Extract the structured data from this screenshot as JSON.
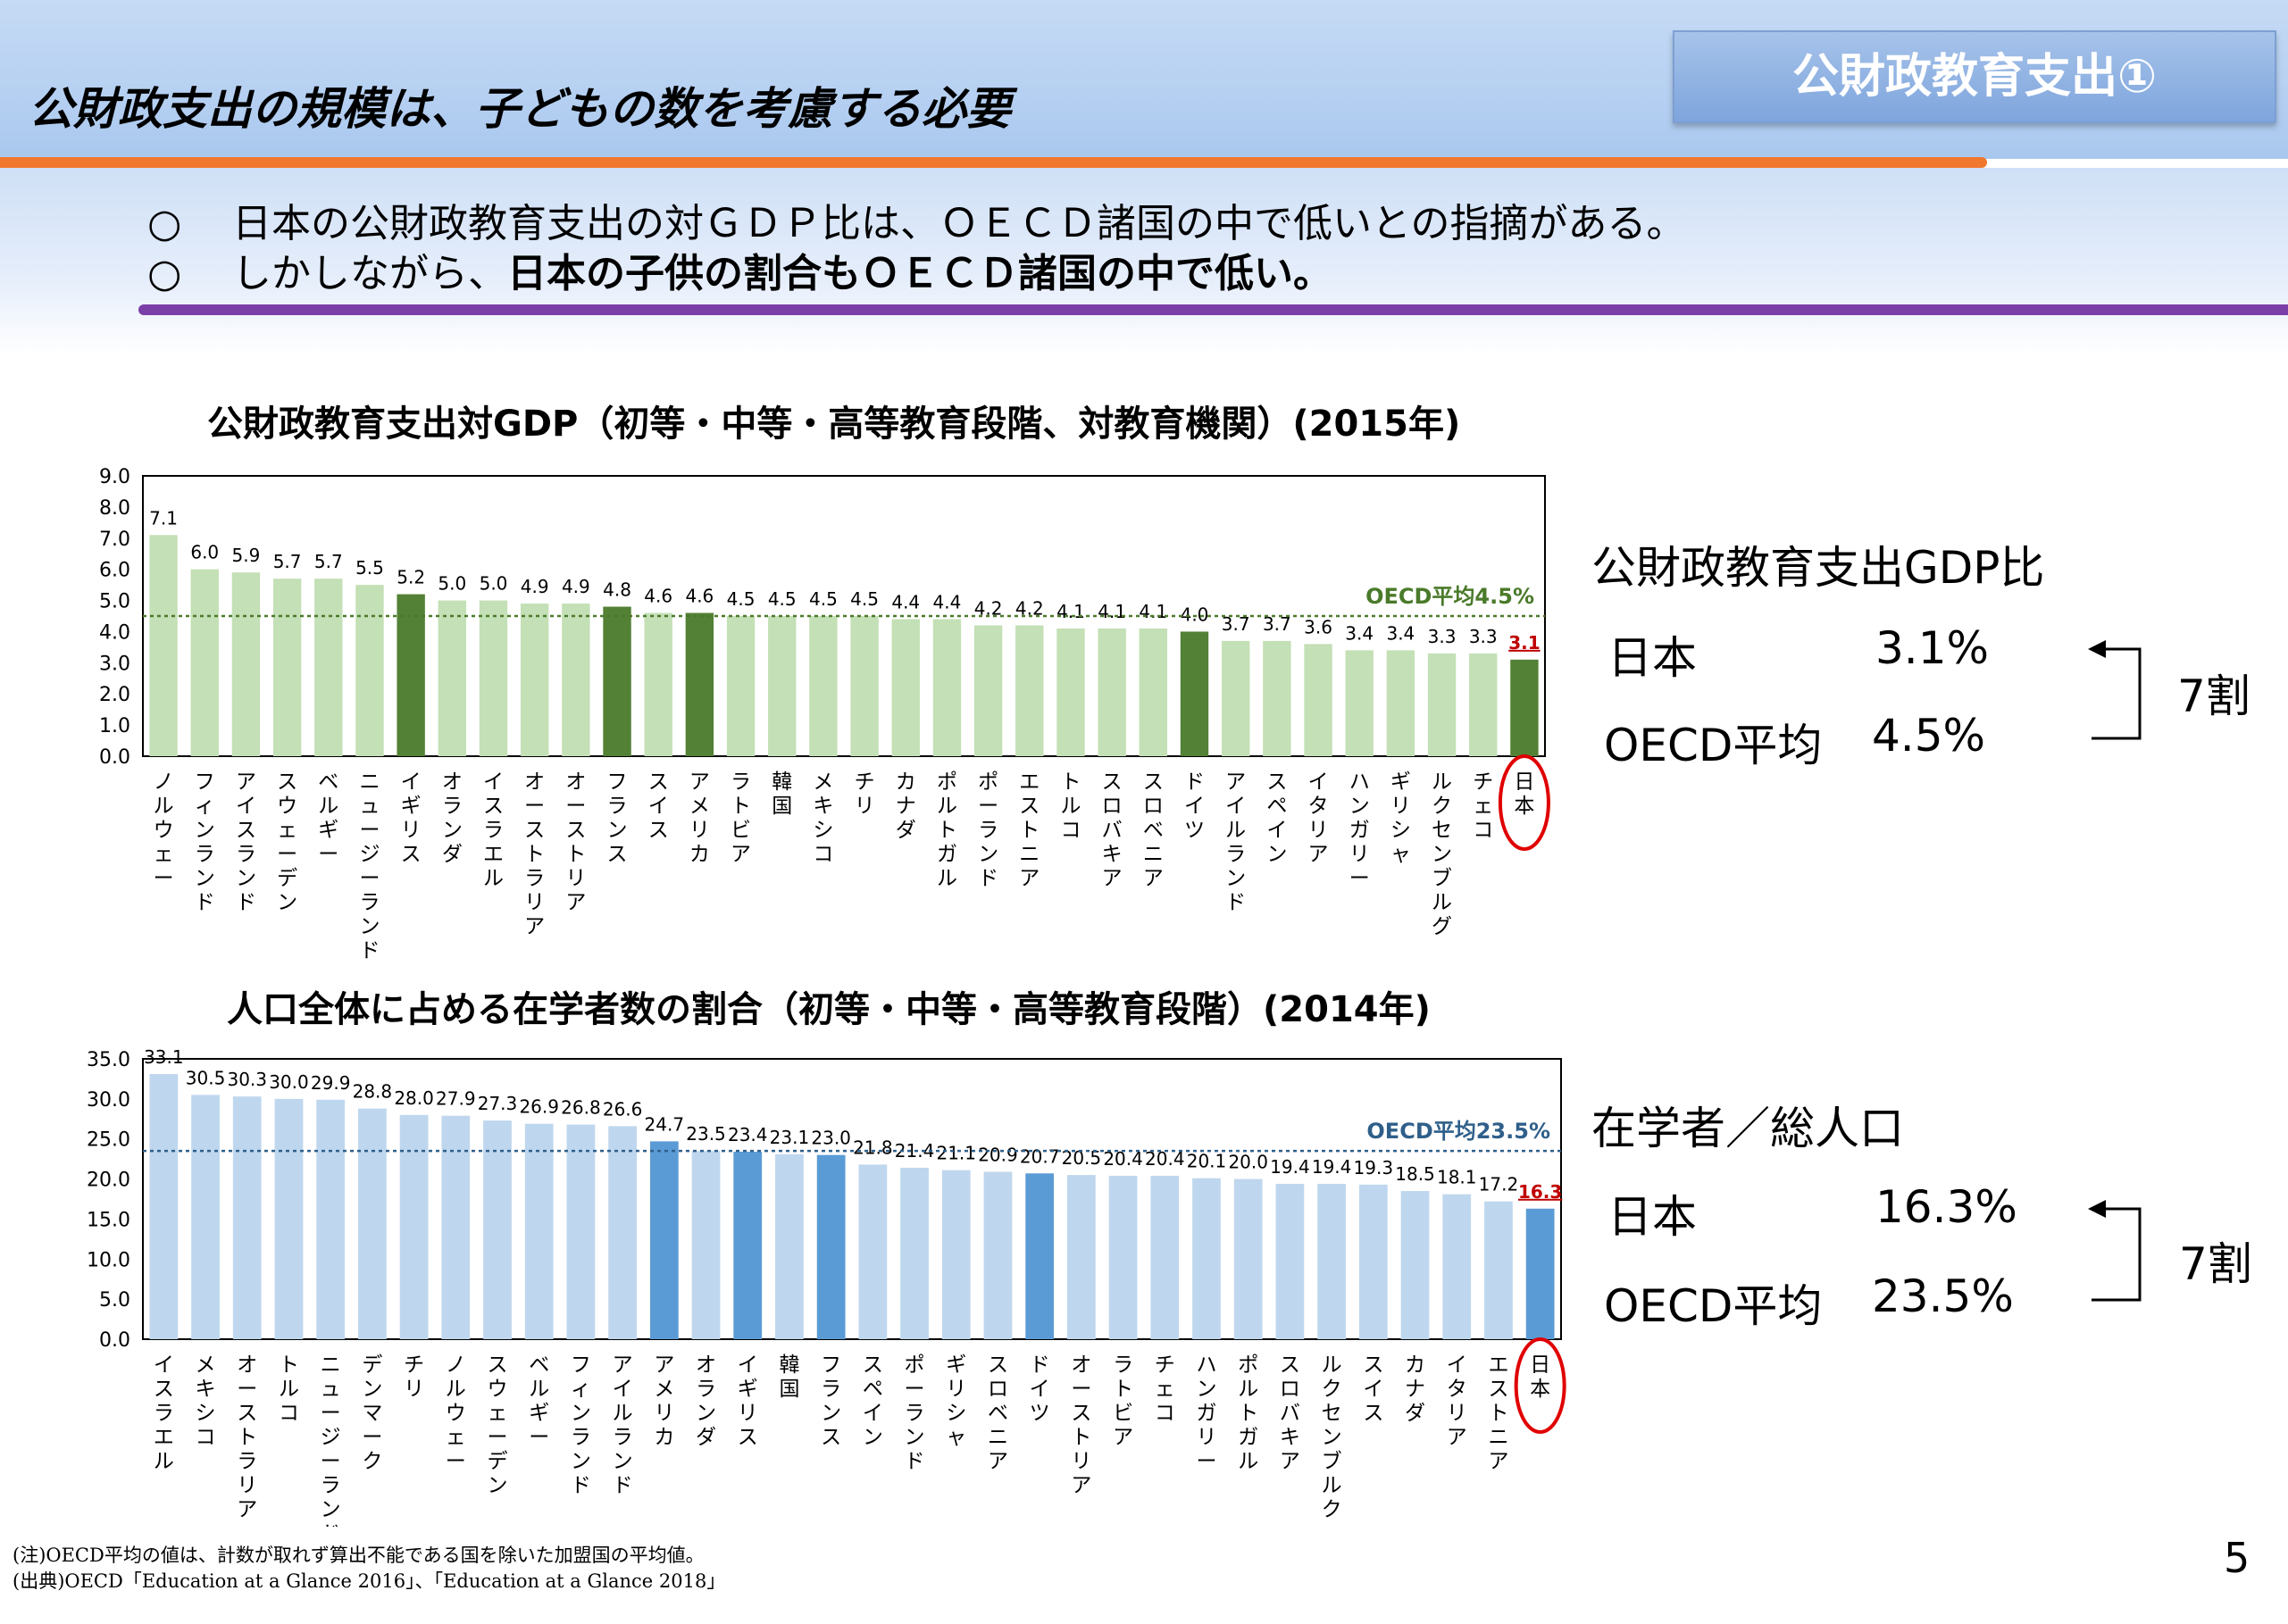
{
  "header": {
    "title": "公財政支出の規模は、子どもの数を考慮する必要",
    "badge": "公財政教育支出①"
  },
  "bullets": [
    {
      "mark": "○",
      "text": "日本の公財政教育支出の対ＧＤＰ比は、ＯＥＣＤ諸国の中で低いとの指摘がある。",
      "bold": ""
    },
    {
      "mark": "○",
      "text": "しかしながら、",
      "bold": "日本の子供の割合もＯＥＣＤ諸国の中で低い。"
    }
  ],
  "colors": {
    "light_bar": "#c4e0b6",
    "highlight_bar": "#538135",
    "light_bar2": "#bfd7ee",
    "highlight_bar2": "#5b9bd5",
    "japan_label": "#c00000",
    "circle": "#e00000"
  },
  "chart_data": [
    {
      "type": "bar",
      "title": "公財政教育支出対GDP（初等・中等・高等教育段階、対教育機関）(2015年)",
      "categories": [
        "ノルウェー",
        "フィンランド",
        "アイスランド",
        "スウェーデン",
        "ベルギー",
        "ニュージーランド",
        "イギリス",
        "オランダ",
        "イスラエル",
        "オーストラリア",
        "オーストリア",
        "フランス",
        "スイス",
        "アメリカ",
        "ラトビア",
        "韓国",
        "メキシコ",
        "チリ",
        "カナダ",
        "ポルトガル",
        "ポーランド",
        "エストニア",
        "トルコ",
        "スロバキア",
        "スロベニア",
        "ドイツ",
        "アイルランド",
        "スペイン",
        "イタリア",
        "ハンガリー",
        "ギリシャ",
        "ルクセンブルグ",
        "チェコ",
        "日本"
      ],
      "values": [
        7.1,
        6.0,
        5.9,
        5.7,
        5.7,
        5.5,
        5.2,
        5.0,
        5.0,
        4.9,
        4.9,
        4.8,
        4.6,
        4.6,
        4.5,
        4.5,
        4.5,
        4.5,
        4.4,
        4.4,
        4.2,
        4.2,
        4.1,
        4.1,
        4.1,
        4.0,
        3.7,
        3.7,
        3.6,
        3.4,
        3.4,
        3.3,
        3.3,
        3.1
      ],
      "value_labels": [
        "7.1",
        "6.0",
        "5.9",
        "5.7",
        "5.7",
        "5.5",
        "5.2",
        "5.0",
        "5.0",
        "4.9",
        "4.9",
        "4.8",
        "4.6",
        "4.6",
        "4.5",
        "4.5",
        "4.5",
        "4.5",
        "4.4",
        "4.4",
        "4.2",
        "4.2",
        "4.1",
        "4.1",
        "4.1",
        "4.0",
        "3.7",
        "3.7",
        "3.6",
        "3.4",
        "3.4",
        "3.3",
        "3.3",
        "3.1"
      ],
      "highlighted": [
        "イギリス",
        "フランス",
        "アメリカ",
        "ドイツ",
        "日本"
      ],
      "ylim": [
        0,
        9
      ],
      "yticks": [
        "0.0",
        "1.0",
        "2.0",
        "3.0",
        "4.0",
        "5.0",
        "6.0",
        "7.0",
        "8.0",
        "9.0"
      ],
      "average": {
        "label": "OECD平均4.5%",
        "value": 4.5
      },
      "grid": false
    },
    {
      "type": "bar",
      "title": "人口全体に占める在学者数の割合（初等・中等・高等教育段階）(2014年)",
      "categories": [
        "イスラエル",
        "メキシコ",
        "オーストラリア",
        "トルコ",
        "ニュージーランド",
        "デンマーク",
        "チリ",
        "ノルウェー",
        "スウェーデン",
        "ベルギー",
        "フィンランド",
        "アイルランド",
        "アメリカ",
        "オランダ",
        "イギリス",
        "韓国",
        "フランス",
        "スペイン",
        "ポーランド",
        "ギリシャ",
        "スロベニア",
        "ドイツ",
        "オーストリア",
        "ラトビア",
        "チェコ",
        "ハンガリー",
        "ポルトガル",
        "スロバキア",
        "ルクセンブルク",
        "スイス",
        "カナダ",
        "イタリア",
        "エストニア",
        "日本"
      ],
      "values": [
        33.1,
        30.5,
        30.3,
        30.0,
        29.9,
        28.8,
        28.0,
        27.9,
        27.3,
        26.9,
        26.8,
        26.6,
        24.7,
        23.5,
        23.4,
        23.1,
        23.0,
        21.8,
        21.4,
        21.1,
        20.9,
        20.7,
        20.5,
        20.4,
        20.4,
        20.1,
        20.0,
        19.4,
        19.4,
        19.3,
        18.5,
        18.1,
        17.2,
        16.3
      ],
      "value_labels": [
        "33.1",
        "30.5",
        "30.3",
        "30.0",
        "29.9",
        "28.8",
        "28.0",
        "27.9",
        "27.3",
        "26.9",
        "26.8",
        "26.6",
        "24.7",
        "23.5",
        "23.4",
        "23.1",
        "23.0",
        "21.8",
        "21.4",
        "21.1",
        "20.9",
        "20.7",
        "20.5",
        "20.4",
        "20.4",
        "20.1",
        "20.0",
        "19.4",
        "19.4",
        "19.3",
        "18.5",
        "18.1",
        "17.2",
        "16.3"
      ],
      "highlighted": [
        "アメリカ",
        "イギリス",
        "フランス",
        "ドイツ",
        "日本"
      ],
      "ylim": [
        0,
        35
      ],
      "yticks": [
        "0.0",
        "5.0",
        "10.0",
        "15.0",
        "20.0",
        "25.0",
        "30.0",
        "35.0"
      ],
      "average": {
        "label": "OECD平均23.5%",
        "value": 23.5
      },
      "grid": false
    }
  ],
  "summary1": {
    "title": "公財政教育支出GDP比",
    "japan_label": "日本",
    "japan_value": "3.1%",
    "oecd_label": "OECD平均",
    "oecd_value": "4.5%",
    "ratio": "7割"
  },
  "summary2": {
    "title": "在学者／総人口",
    "japan_label": "日本",
    "japan_value": "16.3%",
    "oecd_label": "OECD平均",
    "oecd_value": "23.5%",
    "ratio": "7割"
  },
  "footnotes": {
    "note": "(注)OECD平均の値は、計数が取れず算出不能である国を除いた加盟国の平均値。",
    "source": "(出典)OECD「Education at a Glance 2016」、「Education at a Glance 2018」"
  },
  "page_number": "5"
}
